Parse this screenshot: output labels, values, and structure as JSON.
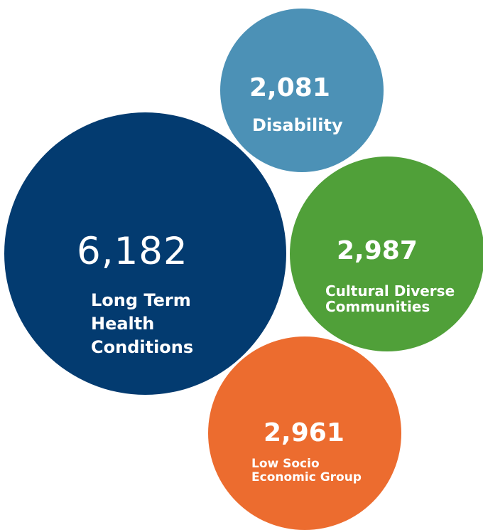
{
  "chart_data": {
    "type": "bubble",
    "title": "",
    "categories": [
      "Long Term Health Conditions",
      "Disability",
      "Cultural Diverse Communities",
      "Low Socio Economic Group"
    ],
    "values": [
      6182,
      2081,
      2987,
      2961
    ],
    "items": [
      {
        "value_label": "6,182",
        "label_lines": [
          "Long Term",
          "Health",
          "Conditions"
        ],
        "color": "#033b70"
      },
      {
        "value_label": "2,081",
        "label_lines": [
          "Disability"
        ],
        "color": "#4c91b6"
      },
      {
        "value_label": "2,987",
        "label_lines": [
          "Cultural Diverse",
          "Communities"
        ],
        "color": "#50a039"
      },
      {
        "value_label": "2,961",
        "label_lines": [
          "Low Socio",
          "Economic Group"
        ],
        "color": "#ec6c2f"
      }
    ]
  }
}
